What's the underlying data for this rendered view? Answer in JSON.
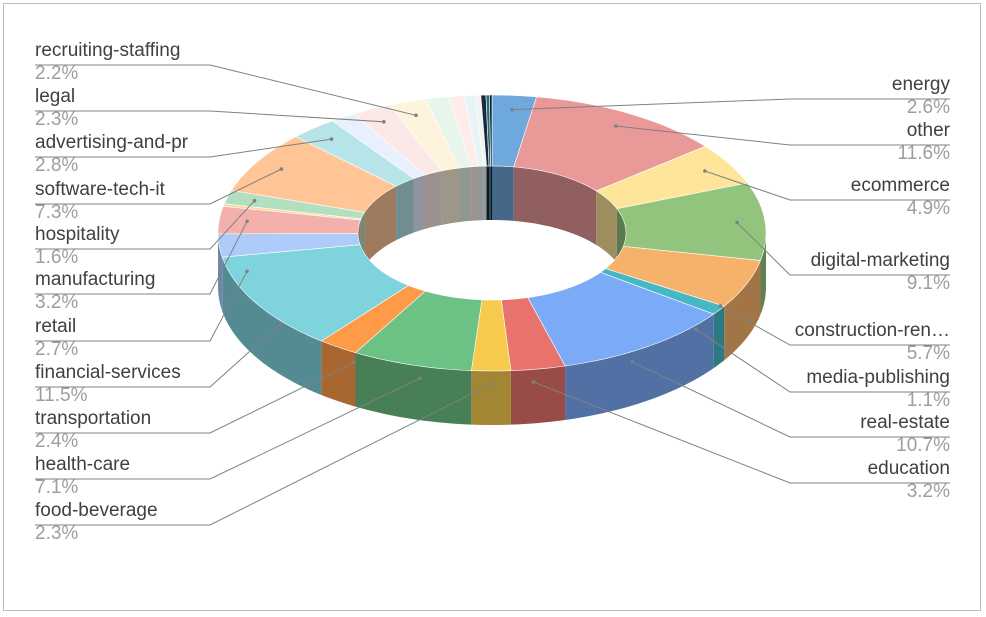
{
  "chart_data": {
    "type": "pie",
    "style": "3d-donut",
    "title": "",
    "legend": "none",
    "slices": [
      {
        "label": "energy",
        "pct_text": "2.6%",
        "value": 2.6,
        "color": "#6fa8dc"
      },
      {
        "label": "other",
        "pct_text": "11.6%",
        "value": 11.6,
        "color": "#ea9999"
      },
      {
        "label": "ecommerce",
        "pct_text": "4.9%",
        "value": 4.9,
        "color": "#ffe599"
      },
      {
        "label": "digital-marketing",
        "pct_text": "9.1%",
        "value": 9.1,
        "color": "#93c47d"
      },
      {
        "label": "construction-ren…",
        "pct_text": "5.7%",
        "value": 5.7,
        "color": "#f6b26b"
      },
      {
        "label": "media-publishing",
        "pct_text": "1.1%",
        "value": 1.1,
        "color": "#45b8c4"
      },
      {
        "label": "real-estate",
        "pct_text": "10.7%",
        "value": 10.7,
        "color": "#7baaf7"
      },
      {
        "label": "education",
        "pct_text": "3.2%",
        "value": 3.2,
        "color": "#e8736c"
      },
      {
        "label": "food-beverage",
        "pct_text": "2.3%",
        "value": 2.3,
        "color": "#f7cb4d"
      },
      {
        "label": "health-care",
        "pct_text": "7.1%",
        "value": 7.1,
        "color": "#6cc184"
      },
      {
        "label": "transportation",
        "pct_text": "2.4%",
        "value": 2.4,
        "color": "#ff9b48"
      },
      {
        "label": "financial-services",
        "pct_text": "11.5%",
        "value": 11.5,
        "color": "#7fd3dd"
      },
      {
        "label": "retail",
        "pct_text": "2.7%",
        "value": 2.7,
        "color": "#aecbfa"
      },
      {
        "label": "manufacturing",
        "pct_text": "3.2%",
        "value": 3.2,
        "color": "#f4b0ad"
      },
      {
        "label": "",
        "pct_text": "",
        "value": 0.3,
        "color": "#fdd99f"
      },
      {
        "label": "hospitality",
        "pct_text": "1.6%",
        "value": 1.6,
        "color": "#b3dfc1"
      },
      {
        "label": "software-tech-it",
        "pct_text": "7.3%",
        "value": 7.3,
        "color": "#ffc597"
      },
      {
        "label": "advertising-and-pr",
        "pct_text": "2.8%",
        "value": 2.8,
        "color": "#b7e4e8"
      },
      {
        "label": "",
        "pct_text": "",
        "value": 1.5,
        "color": "#e8f0fe"
      },
      {
        "label": "legal",
        "pct_text": "2.3%",
        "value": 2.3,
        "color": "#fce8e6"
      },
      {
        "label": "recruiting-staffing",
        "pct_text": "2.2%",
        "value": 2.2,
        "color": "#fef3dc"
      },
      {
        "label": "",
        "pct_text": "",
        "value": 1.4,
        "color": "#e7f5ea"
      },
      {
        "label": "",
        "pct_text": "",
        "value": 0.9,
        "color": "#fdecea"
      },
      {
        "label": "",
        "pct_text": "",
        "value": 0.6,
        "color": "#e6f4f6"
      },
      {
        "label": "",
        "pct_text": "",
        "value": 0.35,
        "color": "#f1f3f4"
      },
      {
        "label": "",
        "pct_text": "",
        "value": 0.3,
        "color": "#1b2a3a"
      },
      {
        "label": "",
        "pct_text": "",
        "value": 0.2,
        "color": "#1f6f78"
      },
      {
        "label": "",
        "pct_text": "",
        "value": 0.15,
        "color": "#0b1f33"
      }
    ]
  }
}
